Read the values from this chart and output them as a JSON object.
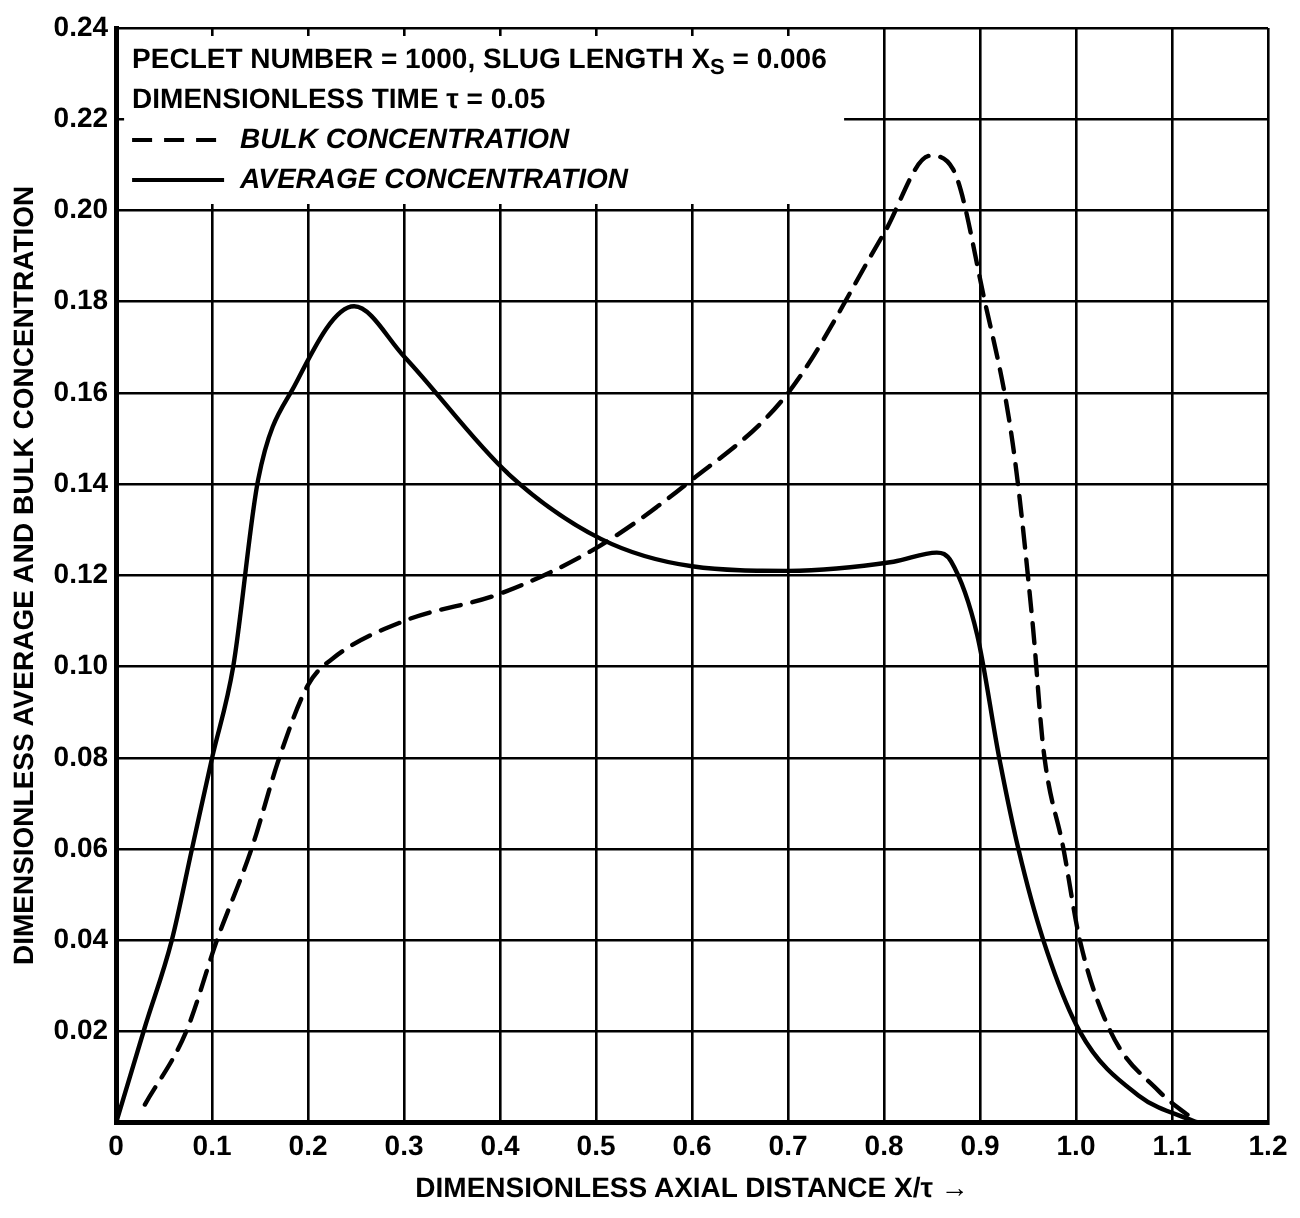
{
  "chart_data": {
    "type": "line",
    "xlabel": "DIMENSIONLESS AXIAL DISTANCE X/τ →",
    "ylabel": "DIMENSIONLESS AVERAGE AND BULK CONCENTRATION",
    "annotations": [
      "PECLET NUMBER = 1000, SLUG LENGTH X$_{S}$ = 0.006",
      "DIMENSIONLESS TIME τ = 0.05"
    ],
    "xlim": [
      0,
      1.2
    ],
    "xticks": [
      0,
      0.1,
      0.2,
      0.3,
      0.4,
      0.5,
      0.6,
      0.7,
      0.8,
      0.9,
      {
        "value": 1,
        "label": "1.0"
      },
      1.1,
      1.2
    ],
    "ylim": [
      0,
      0.24
    ],
    "yticks": [
      {
        "value": 0,
        "label": null
      },
      0.02,
      0.04,
      0.06,
      0.08,
      {
        "value": 0.1,
        "label": "0.10"
      },
      0.12,
      0.14,
      0.16,
      0.18,
      {
        "value": 0.2,
        "label": "0.20"
      },
      0.22,
      0.24
    ],
    "grid": true,
    "legend": "top left",
    "marker": "none",
    "series": [
      {
        "name": "BULK CONCENTRATION",
        "color": "#000000",
        "line_style": "dashed",
        "x": [
          0.03,
          0.073,
          0.105,
          0.141,
          0.17,
          0.2,
          0.227,
          0.3,
          0.4,
          0.5,
          0.594,
          0.7,
          0.8,
          0.848,
          0.872,
          0.904,
          0.934,
          0.955,
          0.966,
          0.987,
          1.004,
          1.036,
          1.086,
          1.127
        ],
        "values": [
          0.004,
          0.02,
          0.04,
          0.06,
          0.08,
          0.096,
          0.102,
          0.11,
          0.116,
          0.126,
          0.14,
          0.16,
          0.195,
          0.212,
          0.209,
          0.181,
          0.149,
          0.109,
          0.082,
          0.06,
          0.04,
          0.02,
          0.007,
          0
        ]
      },
      {
        "name": "AVERAGE CONCENTRATION",
        "color": "#000000",
        "line_style": "solid",
        "x": [
          0,
          0.03,
          0.058,
          0.079,
          0.1,
          0.122,
          0.148,
          0.187,
          0.248,
          0.3,
          0.41,
          0.505,
          0.6,
          0.7,
          0.81,
          0.855,
          0.87,
          0.897,
          0.92,
          0.94,
          0.966,
          1.004,
          1.065,
          1.127
        ],
        "values": [
          0,
          0.021,
          0.04,
          0.06,
          0.08,
          0.1,
          0.141,
          0.162,
          0.179,
          0.168,
          0.142,
          0.128,
          0.122,
          0.121,
          0.123,
          0.125,
          0.123,
          0.107,
          0.08,
          0.06,
          0.04,
          0.02,
          0.006,
          0
        ]
      }
    ]
  }
}
